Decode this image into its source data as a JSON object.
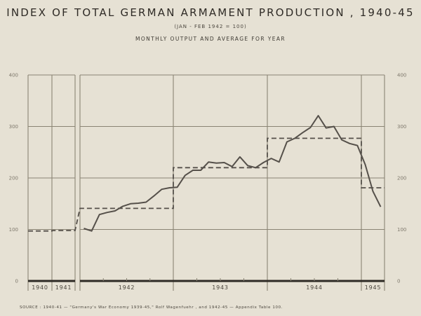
{
  "title": "INDEX OF TOTAL GERMAN ARMAMENT PRODUCTION , 1940-45",
  "subtitle": "(JAN - FEB 1942 = 100)",
  "subtitle2": "MONTHLY OUTPUT AND AVERAGE FOR YEAR",
  "source": "SOURCE : 1940-41 — \"Germany's War Economy 1939-45,\" Rolf Wagenfuehr , and 1942-45 — Appendix Table 100.",
  "colors": {
    "background": "#e6e1d4",
    "grid": "#8a8474",
    "line": "#55504a"
  },
  "chart_data": {
    "type": "line",
    "title": "INDEX OF TOTAL GERMAN ARMAMENT PRODUCTION , 1940-45",
    "subtitle": "(JAN - FEB 1942 = 100) MONTHLY OUTPUT AND AVERAGE FOR YEAR",
    "xlabel": "",
    "ylabel": "",
    "ylim": [
      0,
      400
    ],
    "yticks": [
      0,
      100,
      200,
      300,
      400
    ],
    "y_axis_both_sides": true,
    "grid": true,
    "year_labels": [
      "1940",
      "1941",
      "1942",
      "1943",
      "1944",
      "1945"
    ],
    "series": [
      {
        "name": "Monthly output",
        "style": "solid",
        "x": [
          "1942-01",
          "1942-02",
          "1942-03",
          "1942-04",
          "1942-05",
          "1942-06",
          "1942-07",
          "1942-08",
          "1942-09",
          "1942-10",
          "1942-11",
          "1942-12",
          "1943-01",
          "1943-02",
          "1943-03",
          "1943-04",
          "1943-05",
          "1943-06",
          "1943-07",
          "1943-08",
          "1943-09",
          "1943-10",
          "1943-11",
          "1943-12",
          "1944-01",
          "1944-02",
          "1944-03",
          "1944-04",
          "1944-05",
          "1944-06",
          "1944-07",
          "1944-08",
          "1944-09",
          "1944-10",
          "1944-11",
          "1944-12",
          "1945-01",
          "1945-02",
          "1945-03"
        ],
        "values": [
          102,
          97,
          129,
          133,
          136,
          145,
          150,
          151,
          153,
          165,
          178,
          181,
          182,
          205,
          215,
          215,
          231,
          229,
          230,
          222,
          241,
          224,
          220,
          230,
          238,
          231,
          270,
          277,
          288,
          298,
          321,
          297,
          300,
          274,
          267,
          263,
          226,
          174,
          144
        ]
      },
      {
        "name": "Average for year",
        "style": "dashed",
        "x": [
          "1940",
          "1941",
          "1942",
          "1943",
          "1944",
          "1945"
        ],
        "values": [
          97,
          98,
          141,
          220,
          277,
          181
        ]
      }
    ]
  }
}
